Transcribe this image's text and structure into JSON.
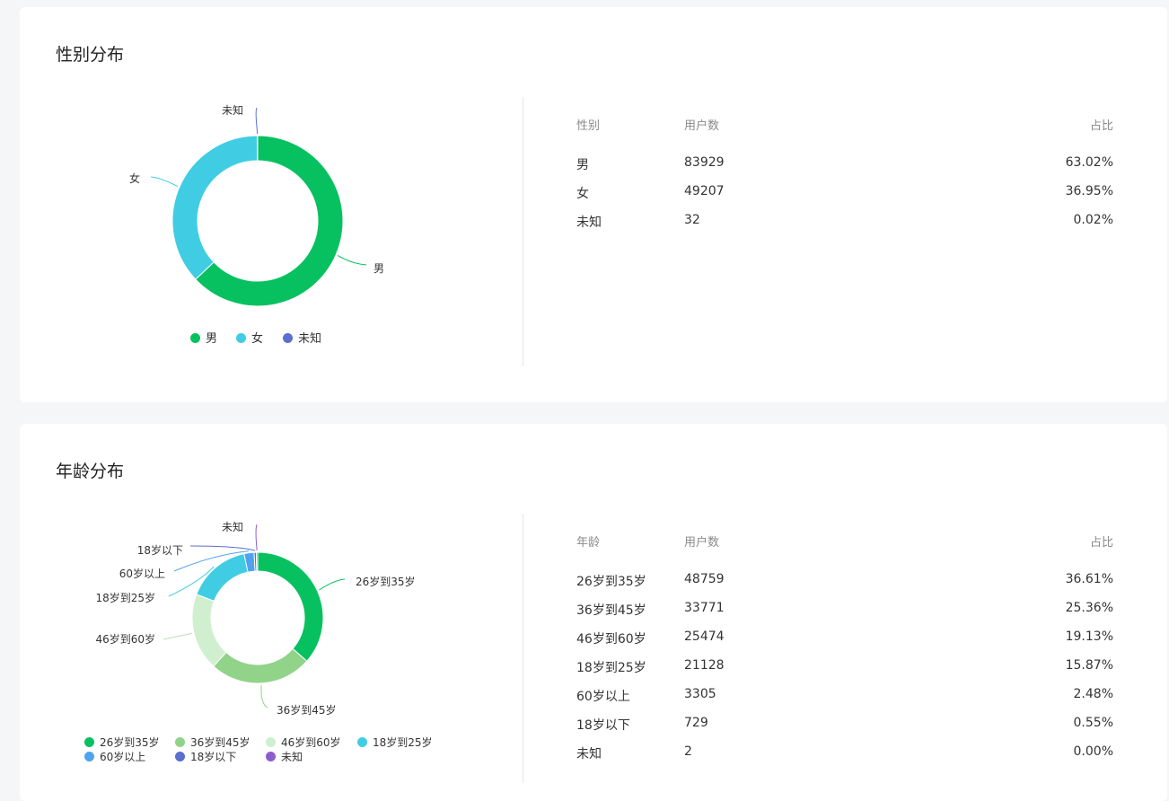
{
  "colors": {
    "green": "#07c160",
    "cyan": "#40cde3",
    "indigo": "#5b6fce",
    "lightgreen": "#91d389",
    "palegreen": "#d0efcf",
    "skyblue": "#4fa3ee",
    "purple": "#8d5dcf"
  },
  "gender": {
    "title": "性别分布",
    "table": {
      "headers": [
        "性别",
        "用户数",
        "占比"
      ],
      "rows": [
        {
          "label": "男",
          "count": "83929",
          "pct": "63.02%"
        },
        {
          "label": "女",
          "count": "49207",
          "pct": "36.95%"
        },
        {
          "label": "未知",
          "count": "32",
          "pct": "0.02%"
        }
      ]
    },
    "legend": [
      "男",
      "女",
      "未知"
    ]
  },
  "age": {
    "title": "年龄分布",
    "table": {
      "headers": [
        "年龄",
        "用户数",
        "占比"
      ],
      "rows": [
        {
          "label": "26岁到35岁",
          "count": "48759",
          "pct": "36.61%"
        },
        {
          "label": "36岁到45岁",
          "count": "33771",
          "pct": "25.36%"
        },
        {
          "label": "46岁到60岁",
          "count": "25474",
          "pct": "19.13%"
        },
        {
          "label": "18岁到25岁",
          "count": "21128",
          "pct": "15.87%"
        },
        {
          "label": "60岁以上",
          "count": "3305",
          "pct": "2.48%"
        },
        {
          "label": "18岁以下",
          "count": "729",
          "pct": "0.55%"
        },
        {
          "label": "未知",
          "count": "2",
          "pct": "0.00%"
        }
      ]
    },
    "legend": [
      "26岁到35岁",
      "36岁到45岁",
      "46岁到60岁",
      "18岁到25岁",
      "60岁以上",
      "18岁以下",
      "未知"
    ]
  },
  "chart_data": [
    {
      "type": "pie",
      "title": "性别分布",
      "categories": [
        "男",
        "女",
        "未知"
      ],
      "values": [
        83929,
        49207,
        32
      ],
      "colors": [
        "#07c160",
        "#40cde3",
        "#5b6fce"
      ],
      "legend": "bottom"
    },
    {
      "type": "pie",
      "title": "年龄分布",
      "categories": [
        "26岁到35岁",
        "36岁到45岁",
        "46岁到60岁",
        "18岁到25岁",
        "60岁以上",
        "18岁以下",
        "未知"
      ],
      "values": [
        48759,
        33771,
        25474,
        21128,
        3305,
        729,
        2
      ],
      "colors": [
        "#07c160",
        "#91d389",
        "#d0efcf",
        "#40cde3",
        "#4fa3ee",
        "#5b6fce",
        "#8d5dcf"
      ],
      "legend": "bottom"
    }
  ]
}
